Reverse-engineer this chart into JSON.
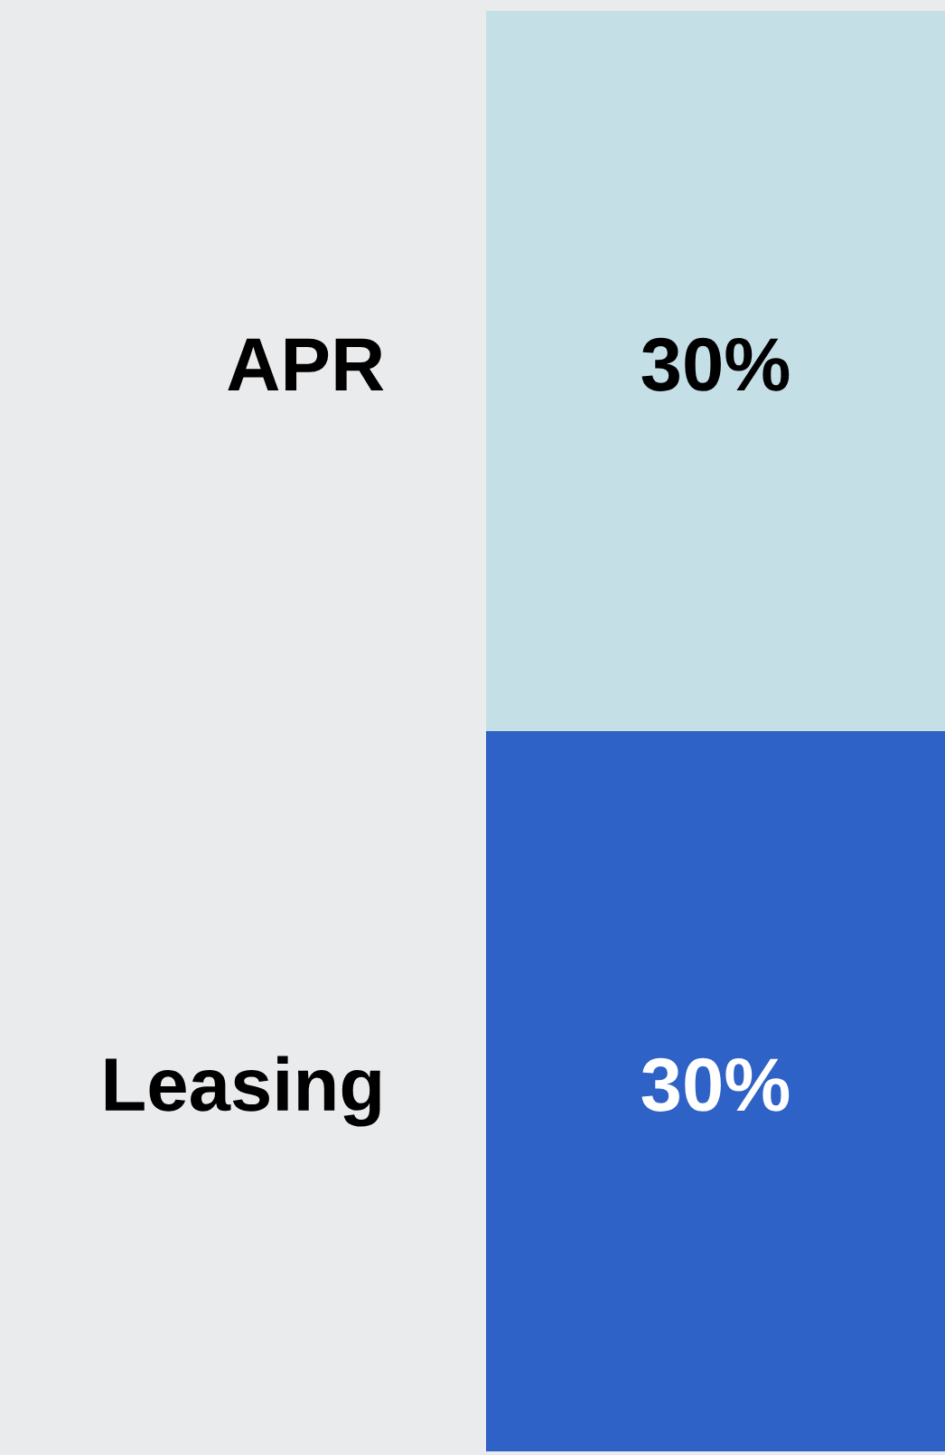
{
  "chart_data": {
    "type": "bar",
    "stacked": true,
    "categories": [
      null
    ],
    "ylim": [
      0,
      60
    ],
    "series": [
      {
        "name": "Leasing",
        "color": "#2f62c6",
        "values": [
          30
        ],
        "value_labels": [
          "30%"
        ]
      },
      {
        "name": "APR",
        "color": "#c5dfe6",
        "values": [
          30
        ],
        "value_labels": [
          "30%"
        ]
      }
    ]
  }
}
